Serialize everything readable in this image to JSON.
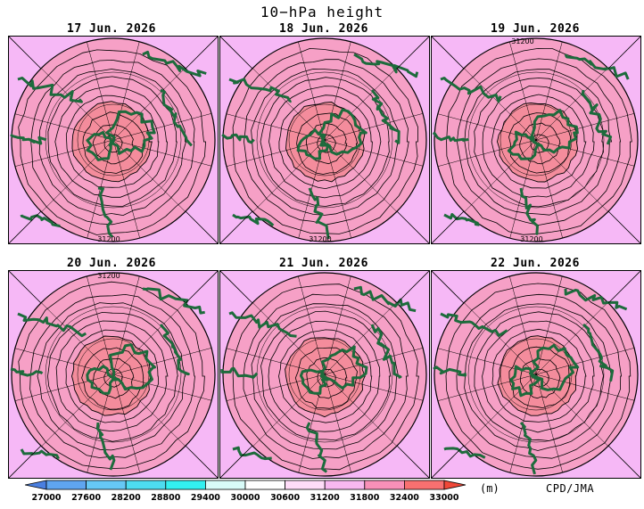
{
  "title": "10−hPa height",
  "panels": [
    {
      "date": "17 Jun. 2026",
      "label_bottom": "31200",
      "label_top": ""
    },
    {
      "date": "18 Jun. 2026",
      "label_bottom": "31200",
      "label_top": ""
    },
    {
      "date": "19 Jun. 2026",
      "label_bottom": "31200",
      "label_top": "31200"
    },
    {
      "date": "20 Jun. 2026",
      "label_bottom": "",
      "label_top": "31200"
    },
    {
      "date": "21 Jun. 2026",
      "label_bottom": "",
      "label_top": ""
    },
    {
      "date": "22 Jun. 2026",
      "label_bottom": "",
      "label_top": ""
    }
  ],
  "legend": {
    "levels": [
      "27000",
      "27600",
      "28200",
      "28800",
      "29400",
      "30000",
      "30600",
      "31200",
      "31800",
      "32400",
      "33000"
    ],
    "colors": [
      "#4a7fe0",
      "#5fa5f0",
      "#66c8f5",
      "#4ddcf0",
      "#33f0f0",
      "#d8fbf8",
      "#ffffff",
      "#ffdcf8",
      "#f8b8f0",
      "#f890b8",
      "#f87070",
      "#f04838"
    ],
    "unit": "(m)",
    "credit": "CPD/JMA"
  },
  "style": {
    "outer_fill": "#f6b8f6",
    "mid_fill": "#f6a0c6",
    "core_fill": "#f48c9c",
    "land_color": "#1d6b3c"
  }
}
